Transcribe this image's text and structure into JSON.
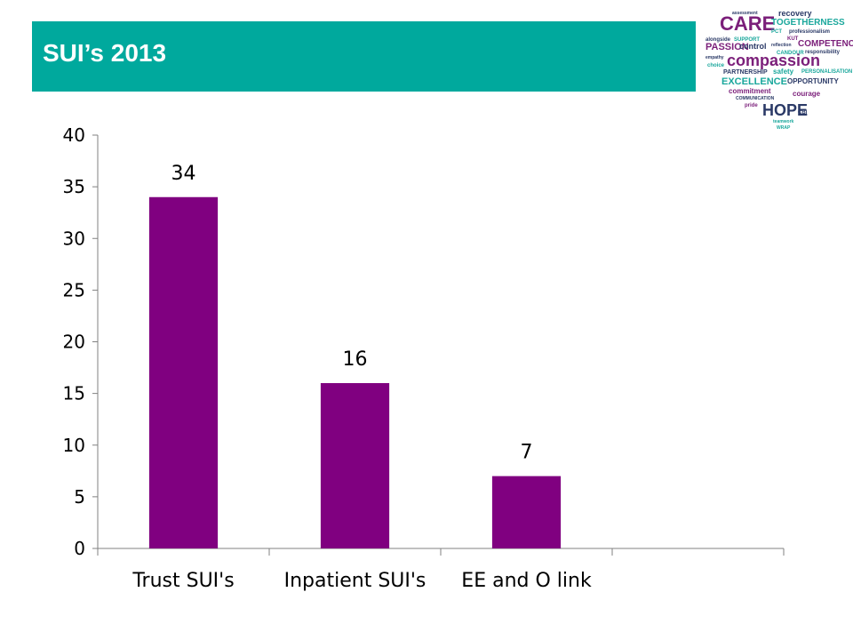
{
  "header": {
    "title": "SUI’s 2013"
  },
  "logo": {
    "icon": "values-word-cloud-heart-logo",
    "words": [
      "assessment",
      "recovery",
      "CARE",
      "TOGETHERNESS",
      "PCT",
      "professionalism",
      "alongside",
      "SUPPORT",
      "KUT",
      "PASSION",
      "control",
      "COMPETENCE",
      "reflection",
      "CANDOUR",
      "responsibility",
      "compassion",
      "empathy",
      "choice",
      "PARTNERSHIP",
      "safety",
      "PERSONALISATION",
      "EXCELLENCE",
      "OPPORTUNITY",
      "commitment",
      "courage",
      "COMMUNICATION",
      "pride",
      "HOPE",
      "CBI",
      "teamwork",
      "WRAP"
    ],
    "colors": {
      "purple": "#7b1f7a",
      "navy": "#2b3a67",
      "teal": "#1aa79c"
    }
  },
  "chart_data": {
    "type": "bar",
    "categories": [
      "Trust SUI's",
      "Inpatient SUI's",
      "EE and O link",
      ""
    ],
    "values": [
      34,
      16,
      7,
      null
    ],
    "data_labels": [
      "34",
      "16",
      "7",
      ""
    ],
    "ylim": [
      0,
      40
    ],
    "yticks": [
      0,
      5,
      10,
      15,
      20,
      25,
      30,
      35,
      40
    ],
    "grid": false,
    "legend": "none",
    "bar_color": "#800080"
  }
}
